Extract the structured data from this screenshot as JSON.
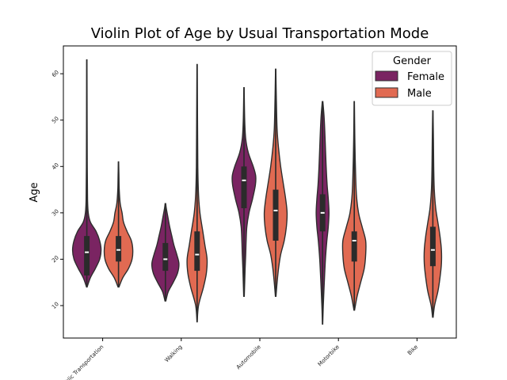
{
  "chart_data": {
    "type": "violin",
    "title": "Violin Plot of Age by Usual Transportation Mode",
    "xlabel": "",
    "ylabel": "Age",
    "categories": [
      "Public Transportation",
      "Walking",
      "Automobile",
      "Motorbike",
      "Bike"
    ],
    "y_ticks": [
      10,
      20,
      30,
      40,
      50,
      60
    ],
    "ylim": [
      3,
      66
    ],
    "legend": {
      "title": "Gender",
      "placement": "top-right"
    },
    "series": [
      {
        "name": "Female",
        "color": "#7a2462",
        "violins": [
          {
            "category": "Public Transportation",
            "min": 14,
            "max": 63,
            "q1": 16.5,
            "median": 21.5,
            "q3": 25,
            "profile": [
              [
                14,
                0.02
              ],
              [
                16,
                0.25
              ],
              [
                18,
                0.6
              ],
              [
                20,
                0.9
              ],
              [
                22,
                1.0
              ],
              [
                24,
                0.9
              ],
              [
                26,
                0.65
              ],
              [
                28,
                0.25
              ],
              [
                30,
                0.1
              ],
              [
                33,
                0.05
              ],
              [
                40,
                0.03
              ],
              [
                50,
                0.02
              ],
              [
                63,
                0.01
              ]
            ]
          },
          {
            "category": "Walking",
            "min": 11,
            "max": 32,
            "q1": 17.5,
            "median": 20,
            "q3": 23.5,
            "profile": [
              [
                11,
                0.03
              ],
              [
                13,
                0.2
              ],
              [
                15,
                0.55
              ],
              [
                17,
                0.85
              ],
              [
                19,
                0.95
              ],
              [
                21,
                0.8
              ],
              [
                23,
                0.6
              ],
              [
                25,
                0.45
              ],
              [
                27,
                0.3
              ],
              [
                29,
                0.18
              ],
              [
                31,
                0.06
              ],
              [
                32,
                0.02
              ]
            ]
          },
          {
            "category": "Automobile",
            "min": 12,
            "max": 57,
            "q1": 31,
            "median": 37,
            "q3": 40,
            "profile": [
              [
                12,
                0.02
              ],
              [
                15,
                0.05
              ],
              [
                18,
                0.08
              ],
              [
                21,
                0.12
              ],
              [
                24,
                0.15
              ],
              [
                27,
                0.2
              ],
              [
                30,
                0.35
              ],
              [
                33,
                0.6
              ],
              [
                36,
                0.8
              ],
              [
                38,
                0.82
              ],
              [
                40,
                0.65
              ],
              [
                43,
                0.3
              ],
              [
                46,
                0.12
              ],
              [
                50,
                0.05
              ],
              [
                57,
                0.01
              ]
            ]
          },
          {
            "category": "Motorbike",
            "min": 6,
            "max": 54,
            "q1": 26,
            "median": 30,
            "q3": 34,
            "profile": [
              [
                6,
                0.01
              ],
              [
                10,
                0.05
              ],
              [
                15,
                0.12
              ],
              [
                20,
                0.2
              ],
              [
                24,
                0.3
              ],
              [
                27,
                0.4
              ],
              [
                30,
                0.45
              ],
              [
                33,
                0.4
              ],
              [
                36,
                0.32
              ],
              [
                40,
                0.25
              ],
              [
                44,
                0.2
              ],
              [
                48,
                0.15
              ],
              [
                51,
                0.1
              ],
              [
                54,
                0.02
              ]
            ]
          }
        ]
      },
      {
        "name": "Male",
        "color": "#e16a52",
        "violins": [
          {
            "category": "Public Transportation",
            "min": 14,
            "max": 41,
            "q1": 19.5,
            "median": 22,
            "q3": 25,
            "profile": [
              [
                14,
                0.03
              ],
              [
                16,
                0.3
              ],
              [
                18,
                0.7
              ],
              [
                20,
                0.95
              ],
              [
                22,
                1.0
              ],
              [
                24,
                0.9
              ],
              [
                26,
                0.6
              ],
              [
                28,
                0.35
              ],
              [
                30,
                0.25
              ],
              [
                32,
                0.12
              ],
              [
                35,
                0.05
              ],
              [
                38,
                0.03
              ],
              [
                41,
                0.01
              ]
            ]
          },
          {
            "category": "Walking",
            "min": 6.5,
            "max": 62,
            "q1": 17.5,
            "median": 21,
            "q3": 26,
            "profile": [
              [
                6.5,
                0.01
              ],
              [
                10,
                0.1
              ],
              [
                14,
                0.45
              ],
              [
                17,
                0.65
              ],
              [
                20,
                0.7
              ],
              [
                23,
                0.55
              ],
              [
                26,
                0.4
              ],
              [
                30,
                0.2
              ],
              [
                34,
                0.1
              ],
              [
                40,
                0.05
              ],
              [
                50,
                0.03
              ],
              [
                62,
                0.01
              ]
            ]
          },
          {
            "category": "Automobile",
            "min": 12,
            "max": 61,
            "q1": 24,
            "median": 30.5,
            "q3": 35,
            "profile": [
              [
                12,
                0.02
              ],
              [
                15,
                0.1
              ],
              [
                18,
                0.2
              ],
              [
                21,
                0.35
              ],
              [
                24,
                0.6
              ],
              [
                27,
                0.75
              ],
              [
                30,
                0.8
              ],
              [
                33,
                0.7
              ],
              [
                36,
                0.55
              ],
              [
                40,
                0.35
              ],
              [
                44,
                0.2
              ],
              [
                48,
                0.1
              ],
              [
                54,
                0.05
              ],
              [
                61,
                0.01
              ]
            ]
          },
          {
            "category": "Motorbike",
            "min": 9,
            "max": 54,
            "q1": 19.5,
            "median": 24,
            "q3": 26,
            "profile": [
              [
                9,
                0.02
              ],
              [
                12,
                0.2
              ],
              [
                15,
                0.45
              ],
              [
                18,
                0.7
              ],
              [
                21,
                0.8
              ],
              [
                24,
                0.8
              ],
              [
                27,
                0.55
              ],
              [
                30,
                0.3
              ],
              [
                34,
                0.15
              ],
              [
                40,
                0.08
              ],
              [
                46,
                0.04
              ],
              [
                54,
                0.01
              ]
            ]
          },
          {
            "category": "Bike",
            "min": 7.5,
            "max": 52,
            "q1": 18.5,
            "median": 22,
            "q3": 27,
            "profile": [
              [
                7.5,
                0.02
              ],
              [
                10,
                0.12
              ],
              [
                13,
                0.35
              ],
              [
                16,
                0.5
              ],
              [
                19,
                0.6
              ],
              [
                22,
                0.6
              ],
              [
                25,
                0.5
              ],
              [
                28,
                0.35
              ],
              [
                31,
                0.2
              ],
              [
                35,
                0.1
              ],
              [
                40,
                0.06
              ],
              [
                46,
                0.04
              ],
              [
                52,
                0.01
              ]
            ]
          }
        ]
      }
    ]
  }
}
